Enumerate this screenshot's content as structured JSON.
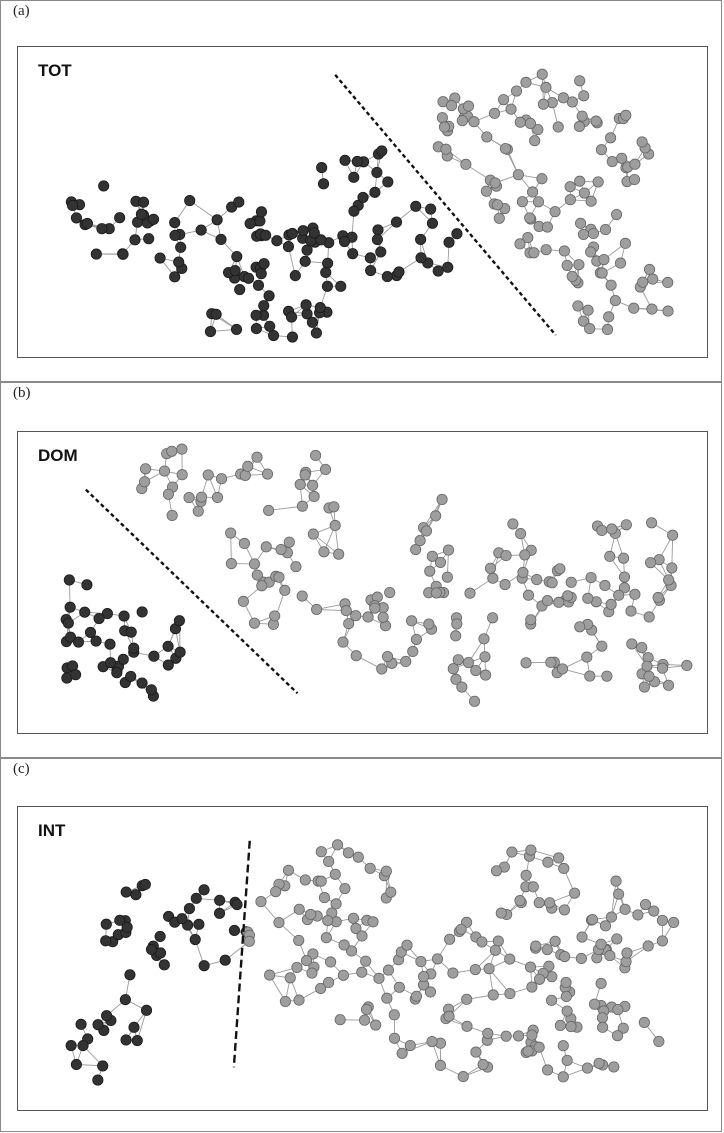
{
  "panels": [
    {
      "label": "(a)",
      "title": "TOT"
    },
    {
      "label": "(b)",
      "title": "DOM"
    },
    {
      "label": "(c)",
      "title": "INT"
    }
  ],
  "colors": {
    "cluster_dark": "#333333",
    "cluster_light": "#9e9e9e",
    "edge": "#9a9a9a",
    "divider": "#111111"
  }
}
